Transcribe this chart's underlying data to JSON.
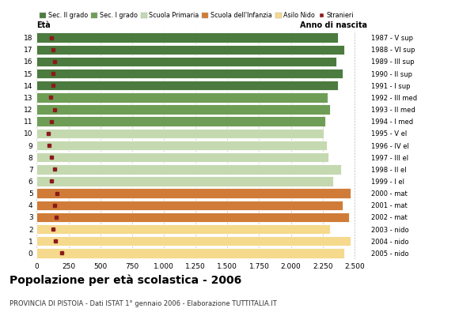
{
  "ages": [
    18,
    17,
    16,
    15,
    14,
    13,
    12,
    11,
    10,
    9,
    8,
    7,
    6,
    5,
    4,
    3,
    2,
    1,
    0
  ],
  "years": [
    "1987 - V sup",
    "1988 - VI sup",
    "1989 - III sup",
    "1990 - II sup",
    "1991 - I sup",
    "1992 - III med",
    "1993 - II med",
    "1994 - I med",
    "1995 - V el",
    "1996 - IV el",
    "1997 - III el",
    "1998 - II el",
    "1999 - I el",
    "2000 - mat",
    "2001 - mat",
    "2002 - mat",
    "2003 - nido",
    "2004 - nido",
    "2005 - nido"
  ],
  "bar_values": [
    2370,
    2420,
    2360,
    2410,
    2370,
    2290,
    2310,
    2270,
    2260,
    2285,
    2295,
    2395,
    2335,
    2470,
    2410,
    2455,
    2310,
    2470,
    2420
  ],
  "stranieri_values": [
    118,
    128,
    140,
    130,
    128,
    112,
    138,
    118,
    90,
    98,
    118,
    140,
    118,
    162,
    138,
    155,
    130,
    148,
    195
  ],
  "bar_colors": [
    "#4b7b3e",
    "#4b7b3e",
    "#4b7b3e",
    "#4b7b3e",
    "#4b7b3e",
    "#6e9e56",
    "#6e9e56",
    "#6e9e56",
    "#c4d9b0",
    "#c4d9b0",
    "#c4d9b0",
    "#c4d9b0",
    "#c4d9b0",
    "#d07c38",
    "#d07c38",
    "#d07c38",
    "#f5d98c",
    "#f5d98c",
    "#f5d98c"
  ],
  "legend_labels": [
    "Sec. II grado",
    "Sec. I grado",
    "Scuola Primaria",
    "Scuola dell'Infanzia",
    "Asilo Nido",
    "Stranieri"
  ],
  "legend_colors": [
    "#4b7b3e",
    "#6e9e56",
    "#c4d9b0",
    "#d07c38",
    "#f5d98c",
    "#8b1a1a"
  ],
  "stranieri_color": "#8b1a1a",
  "title": "Popolazione per età scolastica - 2006",
  "subtitle": "PROVINCIA DI PISTOIA - Dati ISTAT 1° gennaio 2006 - Elaborazione TUTTITALIA.IT",
  "xlabel_eta": "Età",
  "xlabel_anno": "Anno di nascita",
  "xticks": [
    0,
    250,
    500,
    750,
    1000,
    1250,
    1500,
    1750,
    2000,
    2250,
    2500
  ],
  "xtick_labels": [
    "0",
    "250",
    "500",
    "750",
    "1.000",
    "1.250",
    "1.500",
    "1.750",
    "2.000",
    "2.250",
    "2.500"
  ],
  "xlim": [
    0,
    2600
  ],
  "bar_height": 0.82,
  "background_color": "#ffffff",
  "grid_color": "#bbbbbb"
}
